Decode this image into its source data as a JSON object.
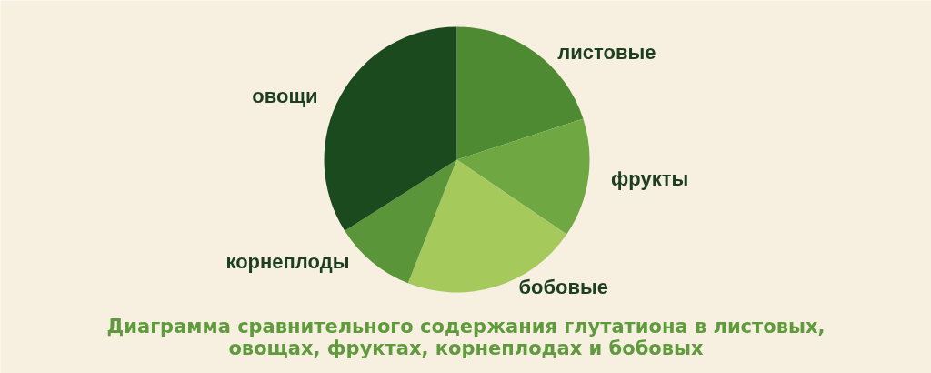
{
  "chart_data": {
    "type": "pie",
    "title": "Диаграмма сравнительного содержания глутатиона в листовых, овощах, фруктах, корнеплодах и бобовых",
    "categories": [
      "листовые",
      "фрукты",
      "бобовые",
      "корнеплоды",
      "овощи"
    ],
    "values": [
      20,
      14.5,
      21.5,
      10,
      34
    ],
    "colors": [
      "#4e8a32",
      "#6fa743",
      "#a6c95c",
      "#5a9639",
      "#1c4a1f"
    ]
  }
}
